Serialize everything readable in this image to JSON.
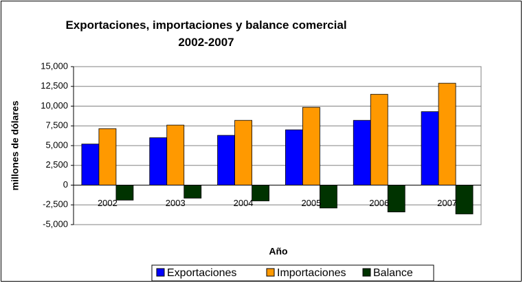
{
  "chart_data": {
    "type": "bar",
    "title": "Exportaciones, importaciones y balance comercial 2002-2007",
    "x_label": "Año",
    "y_label": "millones de dólares",
    "categories": [
      "2002",
      "2003",
      "2004",
      "2005",
      "2006",
      "2007"
    ],
    "series": [
      {
        "name": "Exportaciones",
        "color": "#0000ff",
        "values": [
          5200,
          6000,
          6300,
          7000,
          8200,
          9300
        ]
      },
      {
        "name": "Importaciones",
        "color": "#ff9900",
        "values": [
          7150,
          7600,
          8200,
          9850,
          11500,
          12900
        ]
      },
      {
        "name": "Balance",
        "color": "#003300",
        "values": [
          -1900,
          -1650,
          -2000,
          -2900,
          -3400,
          -3650
        ]
      }
    ],
    "ylim": [
      -5000,
      15000
    ],
    "yticks": [
      {
        "value": -5000,
        "label": "-5,000"
      },
      {
        "value": -2500,
        "label": "-2,500"
      },
      0,
      {
        "value": 2500,
        "label": "2,500"
      },
      {
        "value": 5000,
        "label": "5,000"
      },
      {
        "value": 7500,
        "label": "7,500"
      },
      {
        "value": 10000,
        "label": "10,000"
      },
      {
        "value": 12500,
        "label": "12,500"
      },
      {
        "value": 15000,
        "label": "15,000"
      }
    ],
    "grid": true,
    "legend": "bottom"
  }
}
